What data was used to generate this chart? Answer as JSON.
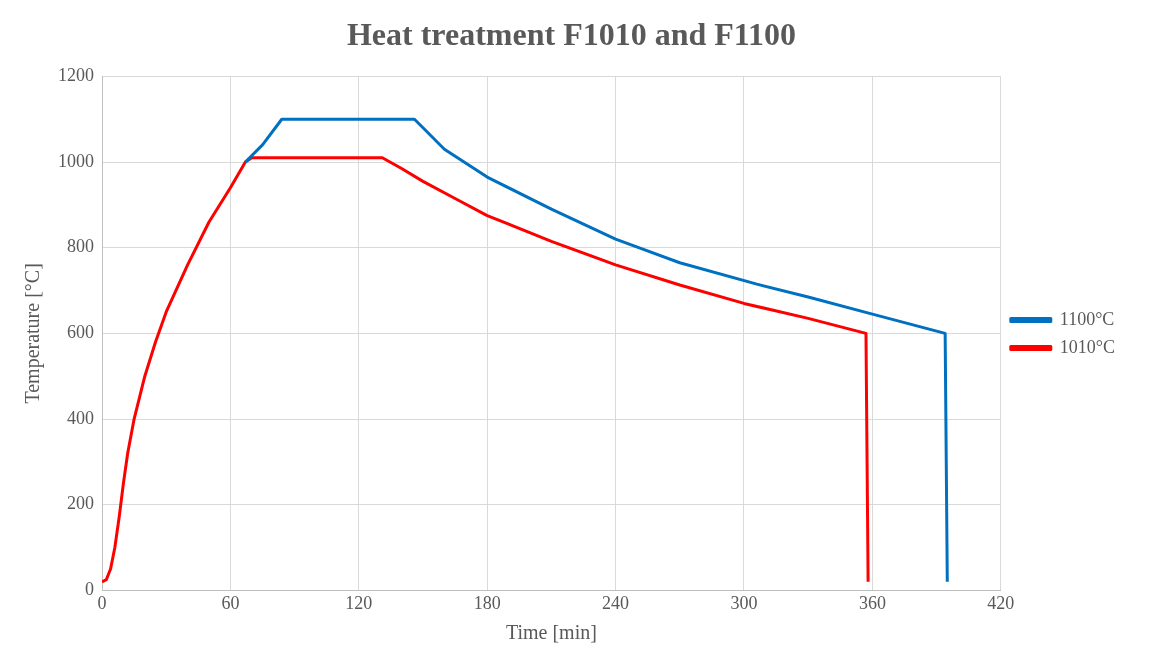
{
  "chart_data": {
    "type": "line",
    "title": "Heat treatment F1010 and F1100",
    "xlabel": "Time [min]",
    "ylabel": "Temperature [°C]",
    "xlim": [
      0,
      420
    ],
    "xticks": [
      0,
      60,
      120,
      180,
      240,
      300,
      360,
      420
    ],
    "ylim": [
      0,
      1200
    ],
    "yticks": [
      0,
      200,
      400,
      600,
      800,
      1000,
      1200
    ],
    "grid": true,
    "legend": "right",
    "marker": "none",
    "line_style": "solid",
    "series": [
      {
        "name": "1100°C",
        "color": "#0070c0",
        "x": [
          67,
          75,
          84,
          100,
          120,
          146,
          150,
          160,
          180,
          210,
          240,
          270,
          306,
          330,
          360,
          394,
          395
        ],
        "values": [
          1000,
          1040,
          1100,
          1100,
          1100,
          1100,
          1080,
          1030,
          965,
          890,
          820,
          765,
          715,
          685,
          645,
          600,
          20
        ]
      },
      {
        "name": "1010°C",
        "color": "#ff0000",
        "x": [
          0,
          2,
          4,
          6,
          8,
          10,
          12,
          15,
          20,
          25,
          30,
          40,
          50,
          60,
          67,
          70,
          100,
          131,
          140,
          150,
          165,
          180,
          210,
          240,
          270,
          300,
          330,
          357,
          358
        ],
        "values": [
          20,
          25,
          50,
          100,
          170,
          250,
          320,
          400,
          500,
          580,
          650,
          760,
          860,
          940,
          1000,
          1010,
          1010,
          1010,
          985,
          955,
          915,
          875,
          815,
          760,
          713,
          670,
          635,
          600,
          20
        ]
      }
    ]
  }
}
